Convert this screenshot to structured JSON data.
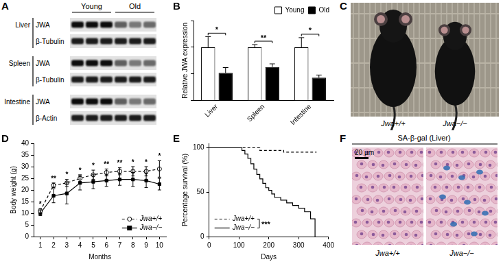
{
  "panels": {
    "A": {
      "panel": "A",
      "columns": [
        "Young",
        "Old"
      ],
      "rows": [
        {
          "tissue": "Liver",
          "proteins": [
            "JWA",
            "β-Tubulin"
          ]
        },
        {
          "tissue": "Spleen",
          "proteins": [
            "JWA",
            "β-Tubulin"
          ]
        },
        {
          "tissue": "Intestine",
          "proteins": [
            "JWA",
            "β-Actin"
          ]
        }
      ]
    },
    "C": {
      "panel": "C",
      "labels": [
        "Jwa+/+",
        "Jwa−/−"
      ]
    },
    "F": {
      "panel": "F",
      "title": "SA-β-gal (Liver)",
      "scale_bar": "20 µm",
      "labels": [
        "Jwa+/+",
        "Jwa−/−"
      ]
    }
  },
  "chart_data": [
    {
      "panel": "B",
      "type": "bar",
      "y_label": "Relative JWA expression",
      "categories": [
        "Liver",
        "Spleen",
        "Intestine"
      ],
      "series": [
        {
          "name": "Young",
          "color": "#ffffff",
          "values": [
            1.0,
            1.0,
            1.0
          ],
          "errors": [
            0.2,
            0.05,
            0.18
          ]
        },
        {
          "name": "Old",
          "color": "#000000",
          "values": [
            0.52,
            0.63,
            0.43
          ],
          "errors": [
            0.1,
            0.06,
            0.05
          ]
        }
      ],
      "annotations": [
        "*",
        "**",
        "*"
      ],
      "ylim": [
        0,
        1.5
      ],
      "yticks": [
        0,
        0.5,
        1,
        1.5
      ],
      "tick_labels": "x",
      "legend": "top-right",
      "grid": false
    },
    {
      "panel": "D",
      "type": "line",
      "x_label": "Months",
      "y_label": "Body weight (g)",
      "x": [
        1,
        2,
        3,
        4,
        5,
        6,
        7,
        8,
        9,
        10
      ],
      "series": [
        {
          "name": "Jwa+/+",
          "color": "#000000",
          "marker": "circle-open",
          "line_style": "dashed",
          "values": [
            11,
            22,
            23,
            25,
            26.5,
            27.5,
            28,
            28,
            28,
            29
          ],
          "errors": [
            1,
            1,
            1.5,
            1.5,
            2,
            1.5,
            1.5,
            2,
            2,
            3.5
          ]
        },
        {
          "name": "Jwa−/−",
          "color": "#000000",
          "marker": "square",
          "line_style": "solid",
          "values": [
            10,
            17.5,
            18.5,
            23,
            23.5,
            24,
            24.5,
            24.5,
            24,
            22.5
          ],
          "errors": [
            1,
            3,
            4.5,
            3,
            3,
            2.5,
            2.5,
            3,
            3,
            2.5
          ]
        }
      ],
      "annotations": [
        "*",
        "**",
        "*",
        "*",
        "*",
        "**",
        "**",
        "*",
        "*",
        "*"
      ],
      "xlim": [
        0.5,
        10.5
      ],
      "xticks": [
        1,
        2,
        3,
        4,
        5,
        6,
        7,
        8,
        9,
        10
      ],
      "ylim": [
        0,
        40
      ],
      "yticks": [
        0,
        5,
        10,
        15,
        20,
        25,
        30,
        35,
        40
      ],
      "legend": "bottom-right",
      "grid": false
    },
    {
      "panel": "E",
      "type": "step",
      "x_label": "Days",
      "y_label": "Percentage survival (%)",
      "series": [
        {
          "name": "Jwa+/+",
          "color": "#000000",
          "line_style": "dashed",
          "x": [
            0,
            170,
            250,
            360
          ],
          "values": [
            100,
            97,
            95,
            95
          ]
        },
        {
          "name": "Jwa−/−",
          "color": "#000000",
          "line_style": "solid",
          "x": [
            0,
            110,
            120,
            130,
            140,
            150,
            160,
            170,
            180,
            190,
            200,
            210,
            220,
            240,
            260,
            280,
            300,
            320,
            340,
            355
          ],
          "values": [
            100,
            97,
            93,
            88,
            82,
            76,
            70,
            65,
            60,
            55,
            52,
            48,
            44,
            41,
            38,
            35,
            32,
            28,
            20,
            0
          ]
        }
      ],
      "annotations": [
        "***"
      ],
      "xlim": [
        0,
        400
      ],
      "xticks": [
        0,
        100,
        200,
        300,
        400
      ],
      "ylim": [
        0,
        105
      ],
      "yticks": [
        0,
        50,
        100
      ],
      "legend": "bottom-left",
      "grid": false
    }
  ]
}
